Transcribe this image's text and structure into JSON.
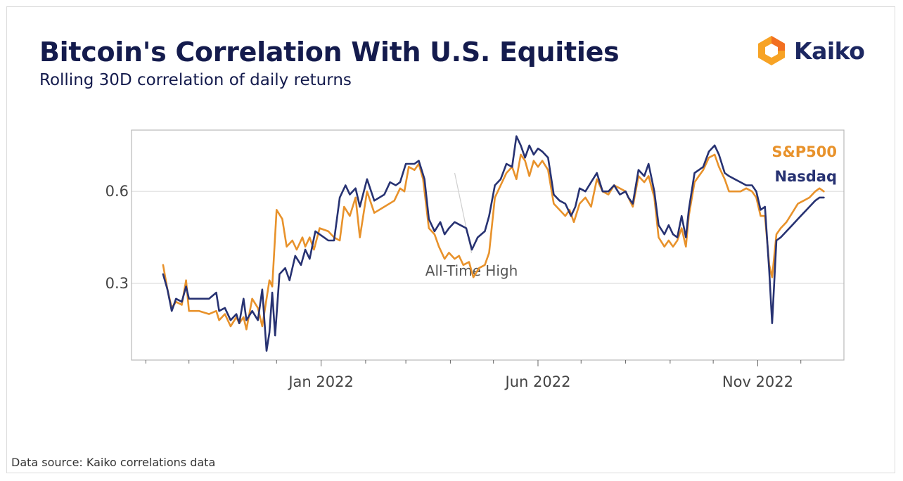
{
  "header": {
    "title": "Bitcoin's Correlation With U.S. Equities",
    "subtitle": "Rolling 30D correlation of daily returns"
  },
  "logo": {
    "text": "Kaiko",
    "icon": "kaiko-logo-icon",
    "colors": [
      "#f7a325",
      "#f26f21"
    ]
  },
  "footer": {
    "source": "Data source: Kaiko correlations data"
  },
  "chart_data": {
    "type": "line",
    "title": "Bitcoin's Correlation With U.S. Equities",
    "subtitle": "Rolling 30D correlation of daily returns",
    "xlabel": "",
    "ylabel": "",
    "x_ticks": [
      "Jan 2022",
      "Jun 2022",
      "Nov 2022"
    ],
    "y_ticks": [
      0.3,
      0.6
    ],
    "ylim": [
      0.05,
      0.8
    ],
    "xlim": [
      "2021-08-22",
      "2022-12-31"
    ],
    "grid": "horizontal",
    "legend": "top-right",
    "annotations": [
      {
        "text": "All-Time High",
        "x": "2022-04-04",
        "y": 0.66
      }
    ],
    "series": [
      {
        "name": "S&P500",
        "color": "#e8922b",
        "points": [
          [
            "2021-09-13",
            0.36
          ],
          [
            "2021-09-16",
            0.28
          ],
          [
            "2021-09-19",
            0.22
          ],
          [
            "2021-09-22",
            0.24
          ],
          [
            "2021-09-26",
            0.23
          ],
          [
            "2021-09-29",
            0.31
          ],
          [
            "2021-10-01",
            0.21
          ],
          [
            "2021-10-08",
            0.21
          ],
          [
            "2021-10-15",
            0.2
          ],
          [
            "2021-10-20",
            0.21
          ],
          [
            "2021-10-22",
            0.18
          ],
          [
            "2021-10-26",
            0.2
          ],
          [
            "2021-10-30",
            0.16
          ],
          [
            "2021-11-03",
            0.19
          ],
          [
            "2021-11-05",
            0.17
          ],
          [
            "2021-11-08",
            0.19
          ],
          [
            "2021-11-10",
            0.15
          ],
          [
            "2021-11-14",
            0.25
          ],
          [
            "2021-11-18",
            0.22
          ],
          [
            "2021-11-21",
            0.16
          ],
          [
            "2021-11-26",
            0.31
          ],
          [
            "2021-11-28",
            0.29
          ],
          [
            "2021-12-01",
            0.54
          ],
          [
            "2021-12-05",
            0.51
          ],
          [
            "2021-12-08",
            0.42
          ],
          [
            "2021-12-12",
            0.44
          ],
          [
            "2021-12-15",
            0.41
          ],
          [
            "2021-12-19",
            0.45
          ],
          [
            "2021-12-21",
            0.42
          ],
          [
            "2021-12-24",
            0.45
          ],
          [
            "2021-12-27",
            0.41
          ],
          [
            "2021-12-31",
            0.48
          ],
          [
            "2022-01-06",
            0.47
          ],
          [
            "2022-01-10",
            0.45
          ],
          [
            "2022-01-14",
            0.44
          ],
          [
            "2022-01-17",
            0.55
          ],
          [
            "2022-01-21",
            0.52
          ],
          [
            "2022-01-25",
            0.58
          ],
          [
            "2022-01-28",
            0.45
          ],
          [
            "2022-02-02",
            0.6
          ],
          [
            "2022-02-07",
            0.53
          ],
          [
            "2022-02-14",
            0.55
          ],
          [
            "2022-02-21",
            0.57
          ],
          [
            "2022-02-25",
            0.61
          ],
          [
            "2022-02-28",
            0.6
          ],
          [
            "2022-03-03",
            0.68
          ],
          [
            "2022-03-07",
            0.67
          ],
          [
            "2022-03-10",
            0.69
          ],
          [
            "2022-03-13",
            0.64
          ],
          [
            "2022-03-17",
            0.48
          ],
          [
            "2022-03-21",
            0.46
          ],
          [
            "2022-03-24",
            0.42
          ],
          [
            "2022-03-28",
            0.38
          ],
          [
            "2022-03-31",
            0.4
          ],
          [
            "2022-04-04",
            0.38
          ],
          [
            "2022-04-07",
            0.39
          ],
          [
            "2022-04-10",
            0.36
          ],
          [
            "2022-04-14",
            0.37
          ],
          [
            "2022-04-17",
            0.32
          ],
          [
            "2022-04-21",
            0.35
          ],
          [
            "2022-04-25",
            0.36
          ],
          [
            "2022-04-28",
            0.4
          ],
          [
            "2022-05-02",
            0.58
          ],
          [
            "2022-05-06",
            0.62
          ],
          [
            "2022-05-10",
            0.66
          ],
          [
            "2022-05-14",
            0.68
          ],
          [
            "2022-05-17",
            0.64
          ],
          [
            "2022-05-20",
            0.72
          ],
          [
            "2022-05-23",
            0.7
          ],
          [
            "2022-05-26",
            0.65
          ],
          [
            "2022-05-29",
            0.7
          ],
          [
            "2022-06-01",
            0.68
          ],
          [
            "2022-06-04",
            0.7
          ],
          [
            "2022-06-08",
            0.67
          ],
          [
            "2022-06-12",
            0.56
          ],
          [
            "2022-06-16",
            0.54
          ],
          [
            "2022-06-20",
            0.52
          ],
          [
            "2022-06-23",
            0.54
          ],
          [
            "2022-06-26",
            0.5
          ],
          [
            "2022-06-30",
            0.56
          ],
          [
            "2022-07-04",
            0.58
          ],
          [
            "2022-07-08",
            0.55
          ],
          [
            "2022-07-12",
            0.64
          ],
          [
            "2022-07-16",
            0.6
          ],
          [
            "2022-07-20",
            0.59
          ],
          [
            "2022-07-24",
            0.62
          ],
          [
            "2022-07-28",
            0.61
          ],
          [
            "2022-08-01",
            0.6
          ],
          [
            "2022-08-03",
            0.58
          ],
          [
            "2022-08-06",
            0.55
          ],
          [
            "2022-08-10",
            0.65
          ],
          [
            "2022-08-14",
            0.63
          ],
          [
            "2022-08-17",
            0.65
          ],
          [
            "2022-08-21",
            0.58
          ],
          [
            "2022-08-24",
            0.45
          ],
          [
            "2022-08-28",
            0.42
          ],
          [
            "2022-08-31",
            0.44
          ],
          [
            "2022-09-03",
            0.42
          ],
          [
            "2022-09-06",
            0.44
          ],
          [
            "2022-09-09",
            0.48
          ],
          [
            "2022-09-12",
            0.42
          ],
          [
            "2022-09-14",
            0.52
          ],
          [
            "2022-09-18",
            0.63
          ],
          [
            "2022-09-21",
            0.65
          ],
          [
            "2022-09-24",
            0.67
          ],
          [
            "2022-09-28",
            0.71
          ],
          [
            "2022-10-02",
            0.72
          ],
          [
            "2022-10-05",
            0.68
          ],
          [
            "2022-10-09",
            0.64
          ],
          [
            "2022-10-12",
            0.6
          ],
          [
            "2022-10-16",
            0.6
          ],
          [
            "2022-10-20",
            0.6
          ],
          [
            "2022-10-24",
            0.61
          ],
          [
            "2022-10-28",
            0.6
          ],
          [
            "2022-10-31",
            0.58
          ],
          [
            "2022-11-03",
            0.52
          ],
          [
            "2022-11-06",
            0.52
          ],
          [
            "2022-11-09",
            0.36
          ],
          [
            "2022-11-11",
            0.32
          ],
          [
            "2022-11-14",
            0.46
          ],
          [
            "2022-11-17",
            0.48
          ],
          [
            "2022-11-21",
            0.5
          ],
          [
            "2022-11-25",
            0.53
          ],
          [
            "2022-11-29",
            0.56
          ],
          [
            "2022-12-03",
            0.57
          ],
          [
            "2022-12-07",
            0.58
          ],
          [
            "2022-12-11",
            0.6
          ],
          [
            "2022-12-14",
            0.61
          ],
          [
            "2022-12-17",
            0.6
          ]
        ]
      },
      {
        "name": "Nasdaq",
        "color": "#273272",
        "points": [
          [
            "2021-09-13",
            0.33
          ],
          [
            "2021-09-16",
            0.28
          ],
          [
            "2021-09-19",
            0.21
          ],
          [
            "2021-09-22",
            0.25
          ],
          [
            "2021-09-26",
            0.24
          ],
          [
            "2021-09-29",
            0.29
          ],
          [
            "2021-10-01",
            0.25
          ],
          [
            "2021-10-08",
            0.25
          ],
          [
            "2021-10-15",
            0.25
          ],
          [
            "2021-10-20",
            0.27
          ],
          [
            "2021-10-22",
            0.21
          ],
          [
            "2021-10-26",
            0.22
          ],
          [
            "2021-10-30",
            0.18
          ],
          [
            "2021-11-03",
            0.2
          ],
          [
            "2021-11-05",
            0.17
          ],
          [
            "2021-11-08",
            0.25
          ],
          [
            "2021-11-10",
            0.18
          ],
          [
            "2021-11-14",
            0.21
          ],
          [
            "2021-11-18",
            0.18
          ],
          [
            "2021-11-21",
            0.28
          ],
          [
            "2021-11-24",
            0.08
          ],
          [
            "2021-11-26",
            0.14
          ],
          [
            "2021-11-28",
            0.27
          ],
          [
            "2021-11-30",
            0.13
          ],
          [
            "2021-12-03",
            0.33
          ],
          [
            "2021-12-07",
            0.35
          ],
          [
            "2021-12-10",
            0.31
          ],
          [
            "2021-12-14",
            0.39
          ],
          [
            "2021-12-18",
            0.36
          ],
          [
            "2021-12-21",
            0.41
          ],
          [
            "2021-12-24",
            0.38
          ],
          [
            "2021-12-28",
            0.47
          ],
          [
            "2022-01-03",
            0.45
          ],
          [
            "2022-01-06",
            0.44
          ],
          [
            "2022-01-10",
            0.44
          ],
          [
            "2022-01-14",
            0.58
          ],
          [
            "2022-01-18",
            0.62
          ],
          [
            "2022-01-21",
            0.59
          ],
          [
            "2022-01-25",
            0.61
          ],
          [
            "2022-01-28",
            0.55
          ],
          [
            "2022-02-02",
            0.64
          ],
          [
            "2022-02-07",
            0.57
          ],
          [
            "2022-02-14",
            0.59
          ],
          [
            "2022-02-18",
            0.63
          ],
          [
            "2022-02-22",
            0.62
          ],
          [
            "2022-02-25",
            0.63
          ],
          [
            "2022-03-01",
            0.69
          ],
          [
            "2022-03-07",
            0.69
          ],
          [
            "2022-03-10",
            0.7
          ],
          [
            "2022-03-14",
            0.64
          ],
          [
            "2022-03-17",
            0.51
          ],
          [
            "2022-03-21",
            0.47
          ],
          [
            "2022-03-25",
            0.5
          ],
          [
            "2022-03-28",
            0.46
          ],
          [
            "2022-03-31",
            0.48
          ],
          [
            "2022-04-04",
            0.5
          ],
          [
            "2022-04-08",
            0.49
          ],
          [
            "2022-04-12",
            0.48
          ],
          [
            "2022-04-16",
            0.41
          ],
          [
            "2022-04-20",
            0.45
          ],
          [
            "2022-04-25",
            0.47
          ],
          [
            "2022-04-28",
            0.52
          ],
          [
            "2022-05-02",
            0.62
          ],
          [
            "2022-05-06",
            0.64
          ],
          [
            "2022-05-10",
            0.69
          ],
          [
            "2022-05-14",
            0.68
          ],
          [
            "2022-05-17",
            0.78
          ],
          [
            "2022-05-20",
            0.75
          ],
          [
            "2022-05-23",
            0.71
          ],
          [
            "2022-05-26",
            0.75
          ],
          [
            "2022-05-29",
            0.72
          ],
          [
            "2022-06-01",
            0.74
          ],
          [
            "2022-06-04",
            0.73
          ],
          [
            "2022-06-08",
            0.71
          ],
          [
            "2022-06-12",
            0.59
          ],
          [
            "2022-06-16",
            0.57
          ],
          [
            "2022-06-20",
            0.56
          ],
          [
            "2022-06-24",
            0.52
          ],
          [
            "2022-06-27",
            0.55
          ],
          [
            "2022-06-30",
            0.61
          ],
          [
            "2022-07-04",
            0.6
          ],
          [
            "2022-07-08",
            0.63
          ],
          [
            "2022-07-12",
            0.66
          ],
          [
            "2022-07-16",
            0.6
          ],
          [
            "2022-07-20",
            0.6
          ],
          [
            "2022-07-24",
            0.62
          ],
          [
            "2022-07-28",
            0.59
          ],
          [
            "2022-08-01",
            0.6
          ],
          [
            "2022-08-03",
            0.58
          ],
          [
            "2022-08-06",
            0.56
          ],
          [
            "2022-08-10",
            0.67
          ],
          [
            "2022-08-14",
            0.65
          ],
          [
            "2022-08-17",
            0.69
          ],
          [
            "2022-08-21",
            0.6
          ],
          [
            "2022-08-24",
            0.49
          ],
          [
            "2022-08-28",
            0.46
          ],
          [
            "2022-08-31",
            0.49
          ],
          [
            "2022-09-03",
            0.46
          ],
          [
            "2022-09-06",
            0.45
          ],
          [
            "2022-09-09",
            0.52
          ],
          [
            "2022-09-12",
            0.45
          ],
          [
            "2022-09-14",
            0.54
          ],
          [
            "2022-09-18",
            0.66
          ],
          [
            "2022-09-21",
            0.67
          ],
          [
            "2022-09-24",
            0.68
          ],
          [
            "2022-09-28",
            0.73
          ],
          [
            "2022-10-02",
            0.75
          ],
          [
            "2022-10-05",
            0.72
          ],
          [
            "2022-10-09",
            0.66
          ],
          [
            "2022-10-12",
            0.65
          ],
          [
            "2022-10-16",
            0.64
          ],
          [
            "2022-10-20",
            0.63
          ],
          [
            "2022-10-24",
            0.62
          ],
          [
            "2022-10-28",
            0.62
          ],
          [
            "2022-10-31",
            0.6
          ],
          [
            "2022-11-03",
            0.54
          ],
          [
            "2022-11-06",
            0.55
          ],
          [
            "2022-11-09",
            0.34
          ],
          [
            "2022-11-11",
            0.17
          ],
          [
            "2022-11-14",
            0.44
          ],
          [
            "2022-11-17",
            0.45
          ],
          [
            "2022-11-21",
            0.47
          ],
          [
            "2022-11-25",
            0.49
          ],
          [
            "2022-11-29",
            0.51
          ],
          [
            "2022-12-03",
            0.53
          ],
          [
            "2022-12-07",
            0.55
          ],
          [
            "2022-12-11",
            0.57
          ],
          [
            "2022-12-14",
            0.58
          ],
          [
            "2022-12-17",
            0.58
          ]
        ]
      }
    ]
  }
}
